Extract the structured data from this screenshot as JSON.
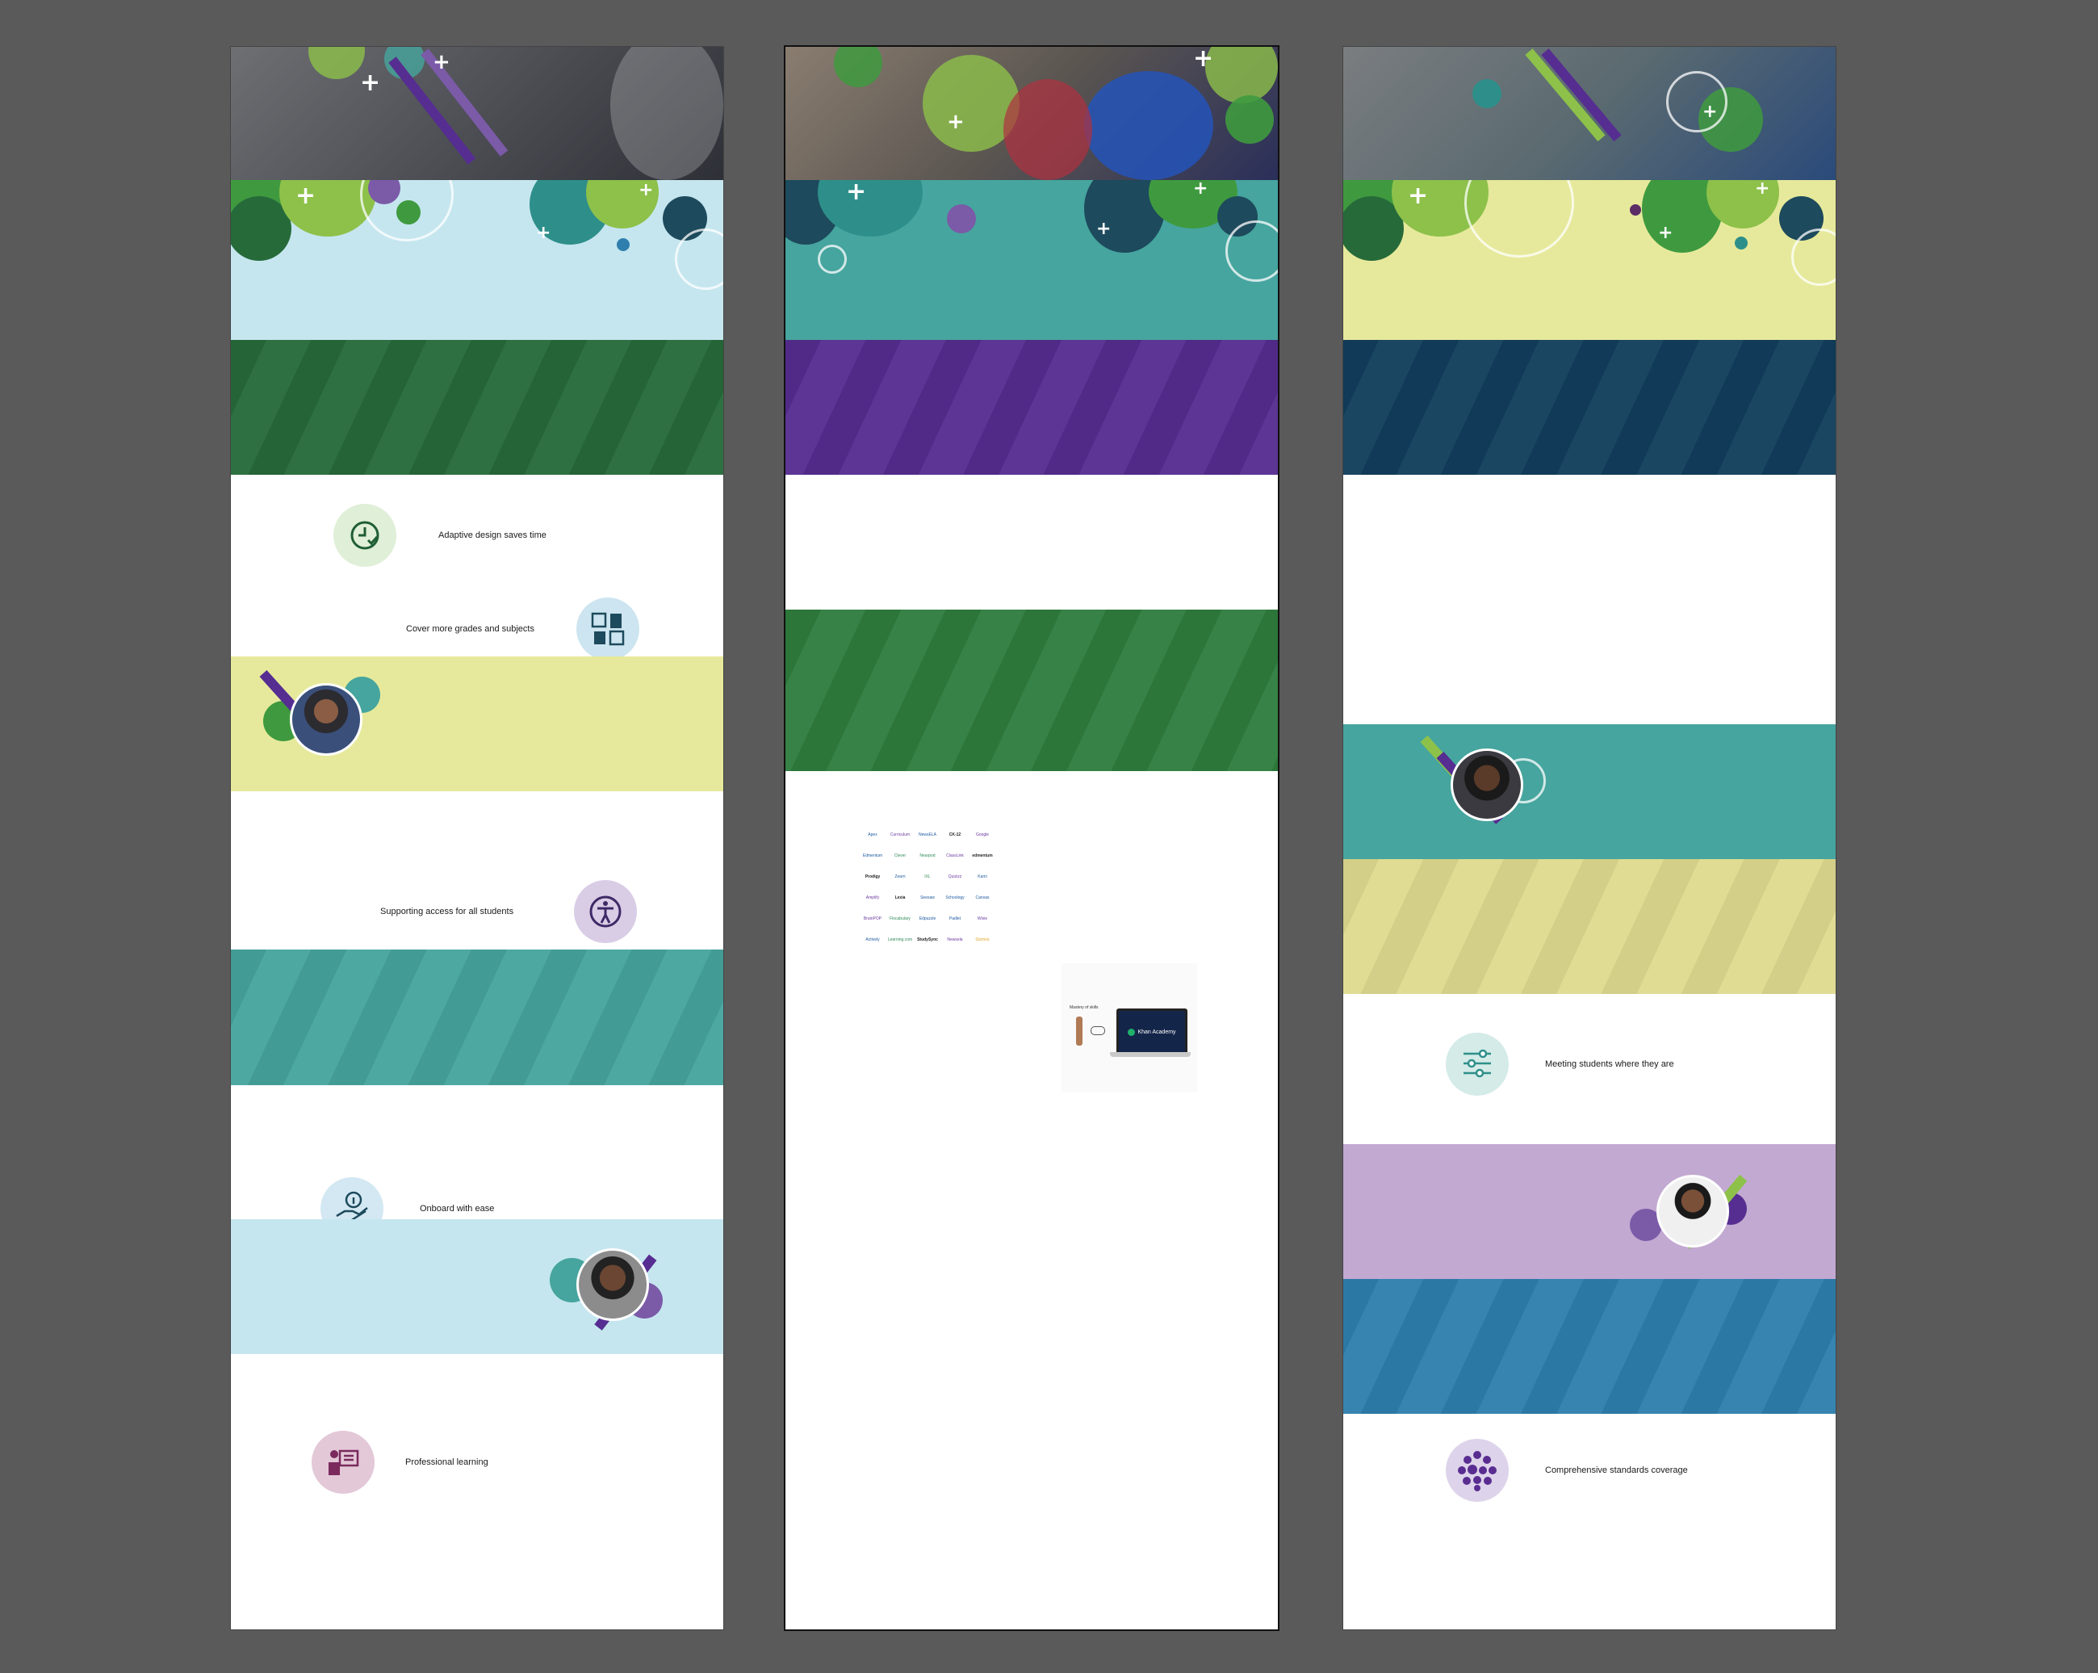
{
  "colors": {
    "canvas": "#5a5a5a",
    "light_blue": "#c5e6ef",
    "dark_green": "#266a3a",
    "lime": "#e6e99b",
    "teal": "#46a59e",
    "purple": "#562d91",
    "navy": "#113e5c",
    "lavender": "#c2a9d1",
    "blue": "#2f7fae",
    "bubble_green": "#3f9a3f",
    "bubble_lime": "#8dc14a",
    "bubble_teal": "#2e8f8a",
    "bubble_navy": "#1d4a5c",
    "bubble_purple": "#7b5aa8"
  },
  "artboard_1": {
    "features": [
      {
        "label": "Adaptive design saves time",
        "icon": "clock-check-icon"
      },
      {
        "label": "Cover more grades and subjects",
        "icon": "books-grid-icon"
      },
      {
        "label": "Supporting access for all students",
        "icon": "accessibility-icon"
      },
      {
        "label": "Onboard with ease",
        "icon": "hand-info-icon"
      },
      {
        "label": "Professional learning",
        "icon": "presenter-icon"
      }
    ]
  },
  "artboard_2": {
    "partner_logos": [
      "Apex",
      "Curriculum",
      "NewsELA",
      "CK-12",
      "Google",
      "Edmentum",
      "Clever",
      "Nearpod",
      "ClassLink",
      "edmentum",
      "Prodigy",
      "Zearn",
      "IXL",
      "Quizizz",
      "Kami",
      "Amplify",
      "Lexia",
      "Seesaw",
      "Schoology",
      "Canvas",
      "BrainPOP",
      "Flocabulary",
      "Edpuzzle",
      "Padlet",
      "Wixie",
      "Actively",
      "Learning.com",
      "StudySync",
      "Newsela",
      "Gizmos"
    ],
    "khan_card": {
      "caption": "Mastery of skills",
      "badge": "Khan Academy"
    }
  },
  "artboard_3": {
    "features": [
      {
        "label": "Meeting students where they are",
        "icon": "sliders-icon"
      },
      {
        "label": "Comprehensive standards coverage",
        "icon": "dots-cluster-icon"
      }
    ]
  }
}
